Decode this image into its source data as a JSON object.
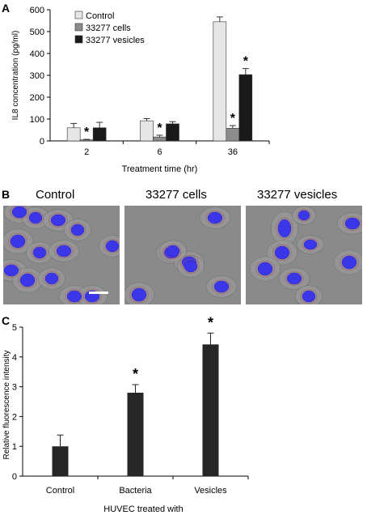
{
  "panel_a": {
    "letter": "A",
    "chart_data": {
      "type": "bar",
      "categories": [
        "2",
        "6",
        "36"
      ],
      "series": [
        {
          "name": "Control",
          "values": [
            60,
            92,
            545
          ],
          "errors": [
            20,
            10,
            22
          ],
          "color": "#e6e6e6"
        },
        {
          "name": "33277 cells",
          "values": [
            5,
            18,
            58
          ],
          "errors": [
            2,
            8,
            12
          ],
          "color": "#8c8c8c"
        },
        {
          "name": "33277 vesicles",
          "values": [
            60,
            78,
            303
          ],
          "errors": [
            25,
            10,
            28
          ],
          "color": "#1a1a1a"
        }
      ],
      "significance": [
        [
          false,
          true,
          false
        ],
        [
          false,
          true,
          false
        ],
        [
          false,
          true,
          true
        ]
      ],
      "significance_marker": "*",
      "ylim": [
        0,
        600
      ],
      "yticks": [
        0,
        100,
        200,
        300,
        400,
        500,
        600
      ],
      "xlabel": "Treatment time (hr)",
      "ylabel": "IL8 concentration (pg/ml)",
      "legend_position": "top-left"
    }
  },
  "panel_b": {
    "letter": "B",
    "images": [
      {
        "title": "Control"
      },
      {
        "title": "33277 cells"
      },
      {
        "title": "33277 vesicles"
      }
    ]
  },
  "panel_c": {
    "letter": "C",
    "chart_data": {
      "type": "bar",
      "categories": [
        "Control",
        "Bacteria",
        "Vesicles"
      ],
      "values": [
        1.0,
        2.8,
        4.42
      ],
      "errors": [
        0.38,
        0.27,
        0.38
      ],
      "significance": [
        false,
        true,
        true
      ],
      "significance_marker": "*",
      "ylim": [
        0,
        5
      ],
      "yticks": [
        0,
        1,
        2,
        3,
        4,
        5
      ],
      "xlabel": "HUVEC treated with",
      "ylabel": "Relative fluorescence intensity",
      "bar_color": "#262626"
    }
  }
}
